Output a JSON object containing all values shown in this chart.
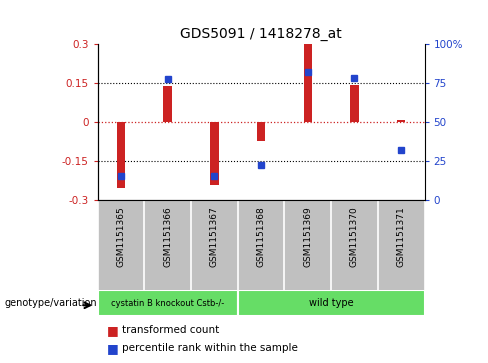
{
  "title": "GDS5091 / 1418278_at",
  "samples": [
    "GSM1151365",
    "GSM1151366",
    "GSM1151367",
    "GSM1151368",
    "GSM1151369",
    "GSM1151370",
    "GSM1151371"
  ],
  "bar_values": [
    -0.255,
    0.135,
    -0.245,
    -0.075,
    0.305,
    0.14,
    0.005
  ],
  "percentile_values": [
    15,
    77,
    15,
    22,
    82,
    78,
    32
  ],
  "ylim_left": [
    -0.3,
    0.3
  ],
  "ylim_right": [
    0,
    100
  ],
  "yticks_left": [
    -0.3,
    -0.15,
    0,
    0.15,
    0.3
  ],
  "yticks_right": [
    0,
    25,
    50,
    75,
    100
  ],
  "bar_color": "#cc2222",
  "point_color": "#2244cc",
  "bg_color": "#ffffff",
  "zero_line_color": "#cc2222",
  "group_labels": [
    "cystatin B knockout Cstb-/-",
    "wild type"
  ],
  "group_colors": [
    "#66dd66",
    "#66dd66"
  ],
  "sample_bg_color": "#c0c0c0",
  "legend_items": [
    "transformed count",
    "percentile rank within the sample"
  ],
  "legend_colors": [
    "#cc2222",
    "#2244cc"
  ],
  "bar_width": 0.18
}
